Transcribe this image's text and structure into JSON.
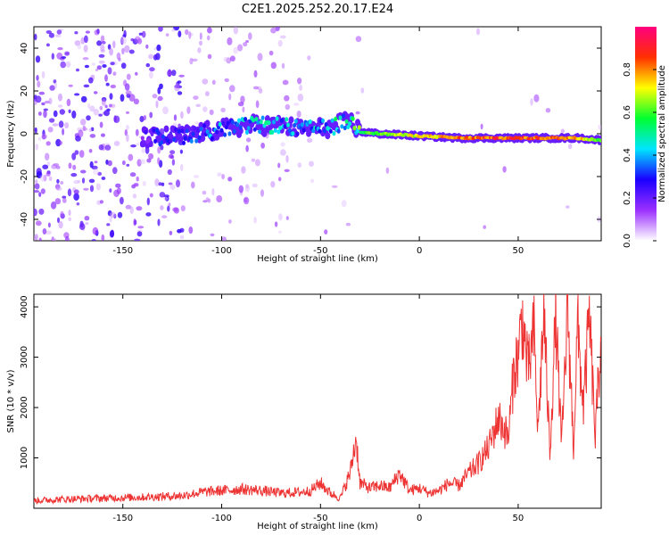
{
  "title": "C2E1.2025.252.20.17.E24",
  "chart_data": [
    {
      "type": "heatmap",
      "xlabel": "Height of straight line (km)",
      "ylabel": "Frequency (Hz)",
      "xlim": [
        -195,
        92
      ],
      "ylim": [
        -50,
        50
      ],
      "x_ticks": [
        -150,
        -100,
        -50,
        0,
        50
      ],
      "y_ticks": [
        -40,
        -20,
        0,
        20,
        40
      ],
      "colorbar": {
        "label": "Normalized spectral amplitude",
        "range": [
          0,
          1
        ],
        "ticks": [
          0.0,
          0.2,
          0.4,
          0.6,
          0.8
        ],
        "colors": [
          "#ffffff",
          "#9b30ff",
          "#1a00ff",
          "#00e5ff",
          "#00ff30",
          "#ffff00",
          "#ff3000",
          "#ff0080"
        ]
      },
      "ridge": [
        {
          "x": -140,
          "y": -2,
          "amp": 0.25
        },
        {
          "x": -120,
          "y": -1,
          "amp": 0.3
        },
        {
          "x": -100,
          "y": 2,
          "amp": 0.4
        },
        {
          "x": -85,
          "y": 4,
          "amp": 0.45
        },
        {
          "x": -70,
          "y": 4,
          "amp": 0.45
        },
        {
          "x": -60,
          "y": 2,
          "amp": 0.4
        },
        {
          "x": -45,
          "y": 3,
          "amp": 0.45
        },
        {
          "x": -35,
          "y": 6,
          "amp": 0.5
        },
        {
          "x": -30,
          "y": 1,
          "amp": 0.6
        },
        {
          "x": -20,
          "y": 0,
          "amp": 0.65
        },
        {
          "x": 0,
          "y": -1,
          "amp": 0.75
        },
        {
          "x": 20,
          "y": -2,
          "amp": 0.85
        },
        {
          "x": 50,
          "y": -2,
          "amp": 0.9
        },
        {
          "x": 80,
          "y": -2,
          "amp": 0.85
        },
        {
          "x": 92,
          "y": -3,
          "amp": 0.6
        }
      ]
    },
    {
      "type": "line",
      "xlabel": "Height of straight line (km)",
      "ylabel": "SNR (10 * v/v)",
      "xlim": [
        -195,
        92
      ],
      "ylim": [
        0,
        4250
      ],
      "x_ticks": [
        -150,
        -100,
        -50,
        0,
        50
      ],
      "y_ticks": [
        1000,
        2000,
        3000,
        4000
      ],
      "color": "#ee3333",
      "x": [
        -195,
        -180,
        -160,
        -140,
        -120,
        -110,
        -100,
        -90,
        -80,
        -70,
        -60,
        -55,
        -50,
        -45,
        -40,
        -35,
        -32,
        -30,
        -25,
        -20,
        -15,
        -10,
        -5,
        0,
        5,
        10,
        15,
        20,
        25,
        30,
        35,
        40,
        45,
        48,
        50,
        52,
        55,
        58,
        60,
        63,
        66,
        69,
        72,
        75,
        78,
        80,
        83,
        86,
        89,
        92
      ],
      "y": [
        150,
        180,
        200,
        220,
        250,
        320,
        350,
        380,
        350,
        300,
        320,
        350,
        500,
        300,
        200,
        700,
        1400,
        500,
        400,
        450,
        400,
        700,
        350,
        400,
        300,
        350,
        500,
        450,
        700,
        900,
        1200,
        1800,
        1400,
        2800,
        3000,
        3800,
        2700,
        3500,
        1500,
        3900,
        1100,
        3800,
        1200,
        4000,
        1200,
        3600,
        2000,
        3800,
        1400,
        3500
      ]
    }
  ]
}
